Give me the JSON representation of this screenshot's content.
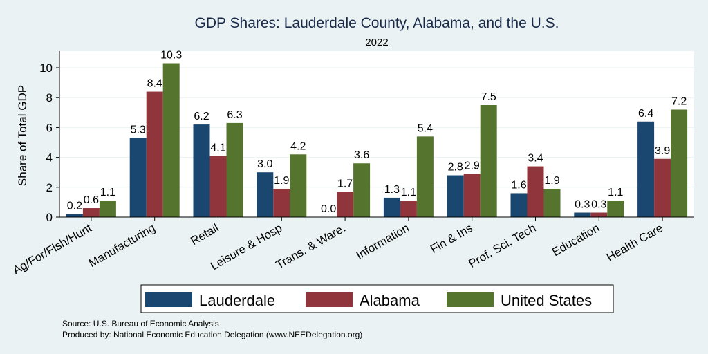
{
  "chart_data": {
    "type": "bar",
    "title": "GDP Shares: Lauderdale County, Alabama, and the U.S.",
    "subtitle": "2022",
    "ylabel": "Share of Total GDP",
    "xlabel": "",
    "ylim": [
      0,
      11
    ],
    "yticks": [
      0,
      2,
      4,
      6,
      8,
      10
    ],
    "grid": true,
    "legend_position": "bottom",
    "categories": [
      "Ag/For/Fish/Hunt",
      "Manufacturing",
      "Retail",
      "Leisure & Hosp",
      "Trans. & Ware.",
      "Information",
      "Fin & Ins",
      "Prof, Sci, Tech",
      "Education",
      "Health Care"
    ],
    "series": [
      {
        "name": "Lauderdale",
        "color": "#1a476f",
        "values": [
          0.2,
          5.3,
          6.2,
          3.0,
          0.0,
          1.3,
          2.8,
          1.6,
          0.3,
          6.4
        ],
        "labels": [
          "0.2",
          "5.3",
          "6.2",
          "3.0",
          "0.0",
          "1.3",
          "2.8",
          "1.6",
          "0.3",
          "6.4"
        ]
      },
      {
        "name": "Alabama",
        "color": "#90353b",
        "values": [
          0.6,
          8.4,
          4.1,
          1.9,
          1.7,
          1.1,
          2.9,
          3.4,
          0.3,
          3.9
        ],
        "labels": [
          "0.6",
          "8.4",
          "4.1",
          "1.9",
          "1.7",
          "1.1",
          "2.9",
          "3.4",
          "0.3",
          "3.9"
        ]
      },
      {
        "name": "United States",
        "color": "#55752f",
        "values": [
          1.1,
          10.3,
          6.3,
          4.2,
          3.6,
          5.4,
          7.5,
          1.9,
          1.1,
          7.2
        ],
        "labels": [
          "1.1",
          "10.3",
          "6.3",
          "4.2",
          "3.6",
          "5.4",
          "7.5",
          "1.9",
          "1.1",
          "7.2"
        ]
      }
    ]
  },
  "footer": {
    "source": "Source: U.S. Bureau of Economic Analysis",
    "produced": "Produced by: National Economic Education Delegation (www.NEEDelegation.org)"
  }
}
